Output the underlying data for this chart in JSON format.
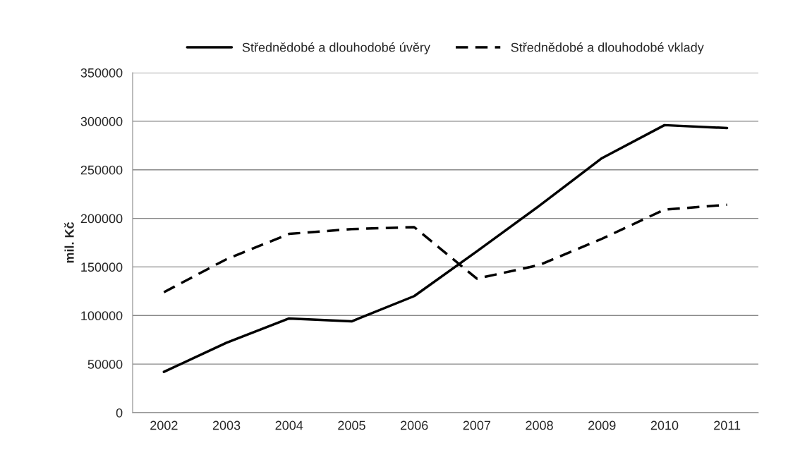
{
  "chart_data": {
    "type": "line",
    "ylabel": "mil. Kč",
    "categories": [
      "2002",
      "2003",
      "2004",
      "2005",
      "2006",
      "2007",
      "2008",
      "2009",
      "2010",
      "2011"
    ],
    "series": [
      {
        "name": "Střednědobé a dlouhodobé úvěry",
        "color": "#000000",
        "line_style": "solid",
        "values": [
          42000,
          72000,
          97000,
          94000,
          120000,
          166000,
          213000,
          262000,
          296000,
          293000
        ]
      },
      {
        "name": "Střednědobé a dlouhodobé vklady",
        "color": "#000000",
        "line_style": "dashed",
        "values": [
          124000,
          158000,
          184000,
          189000,
          191000,
          138000,
          152000,
          179000,
          209000,
          214000
        ]
      }
    ],
    "ylim": [
      0,
      350000
    ],
    "yticks": [
      0,
      50000,
      100000,
      150000,
      200000,
      250000,
      300000,
      350000
    ],
    "grid": "y",
    "legend": "top",
    "marker": "none"
  }
}
